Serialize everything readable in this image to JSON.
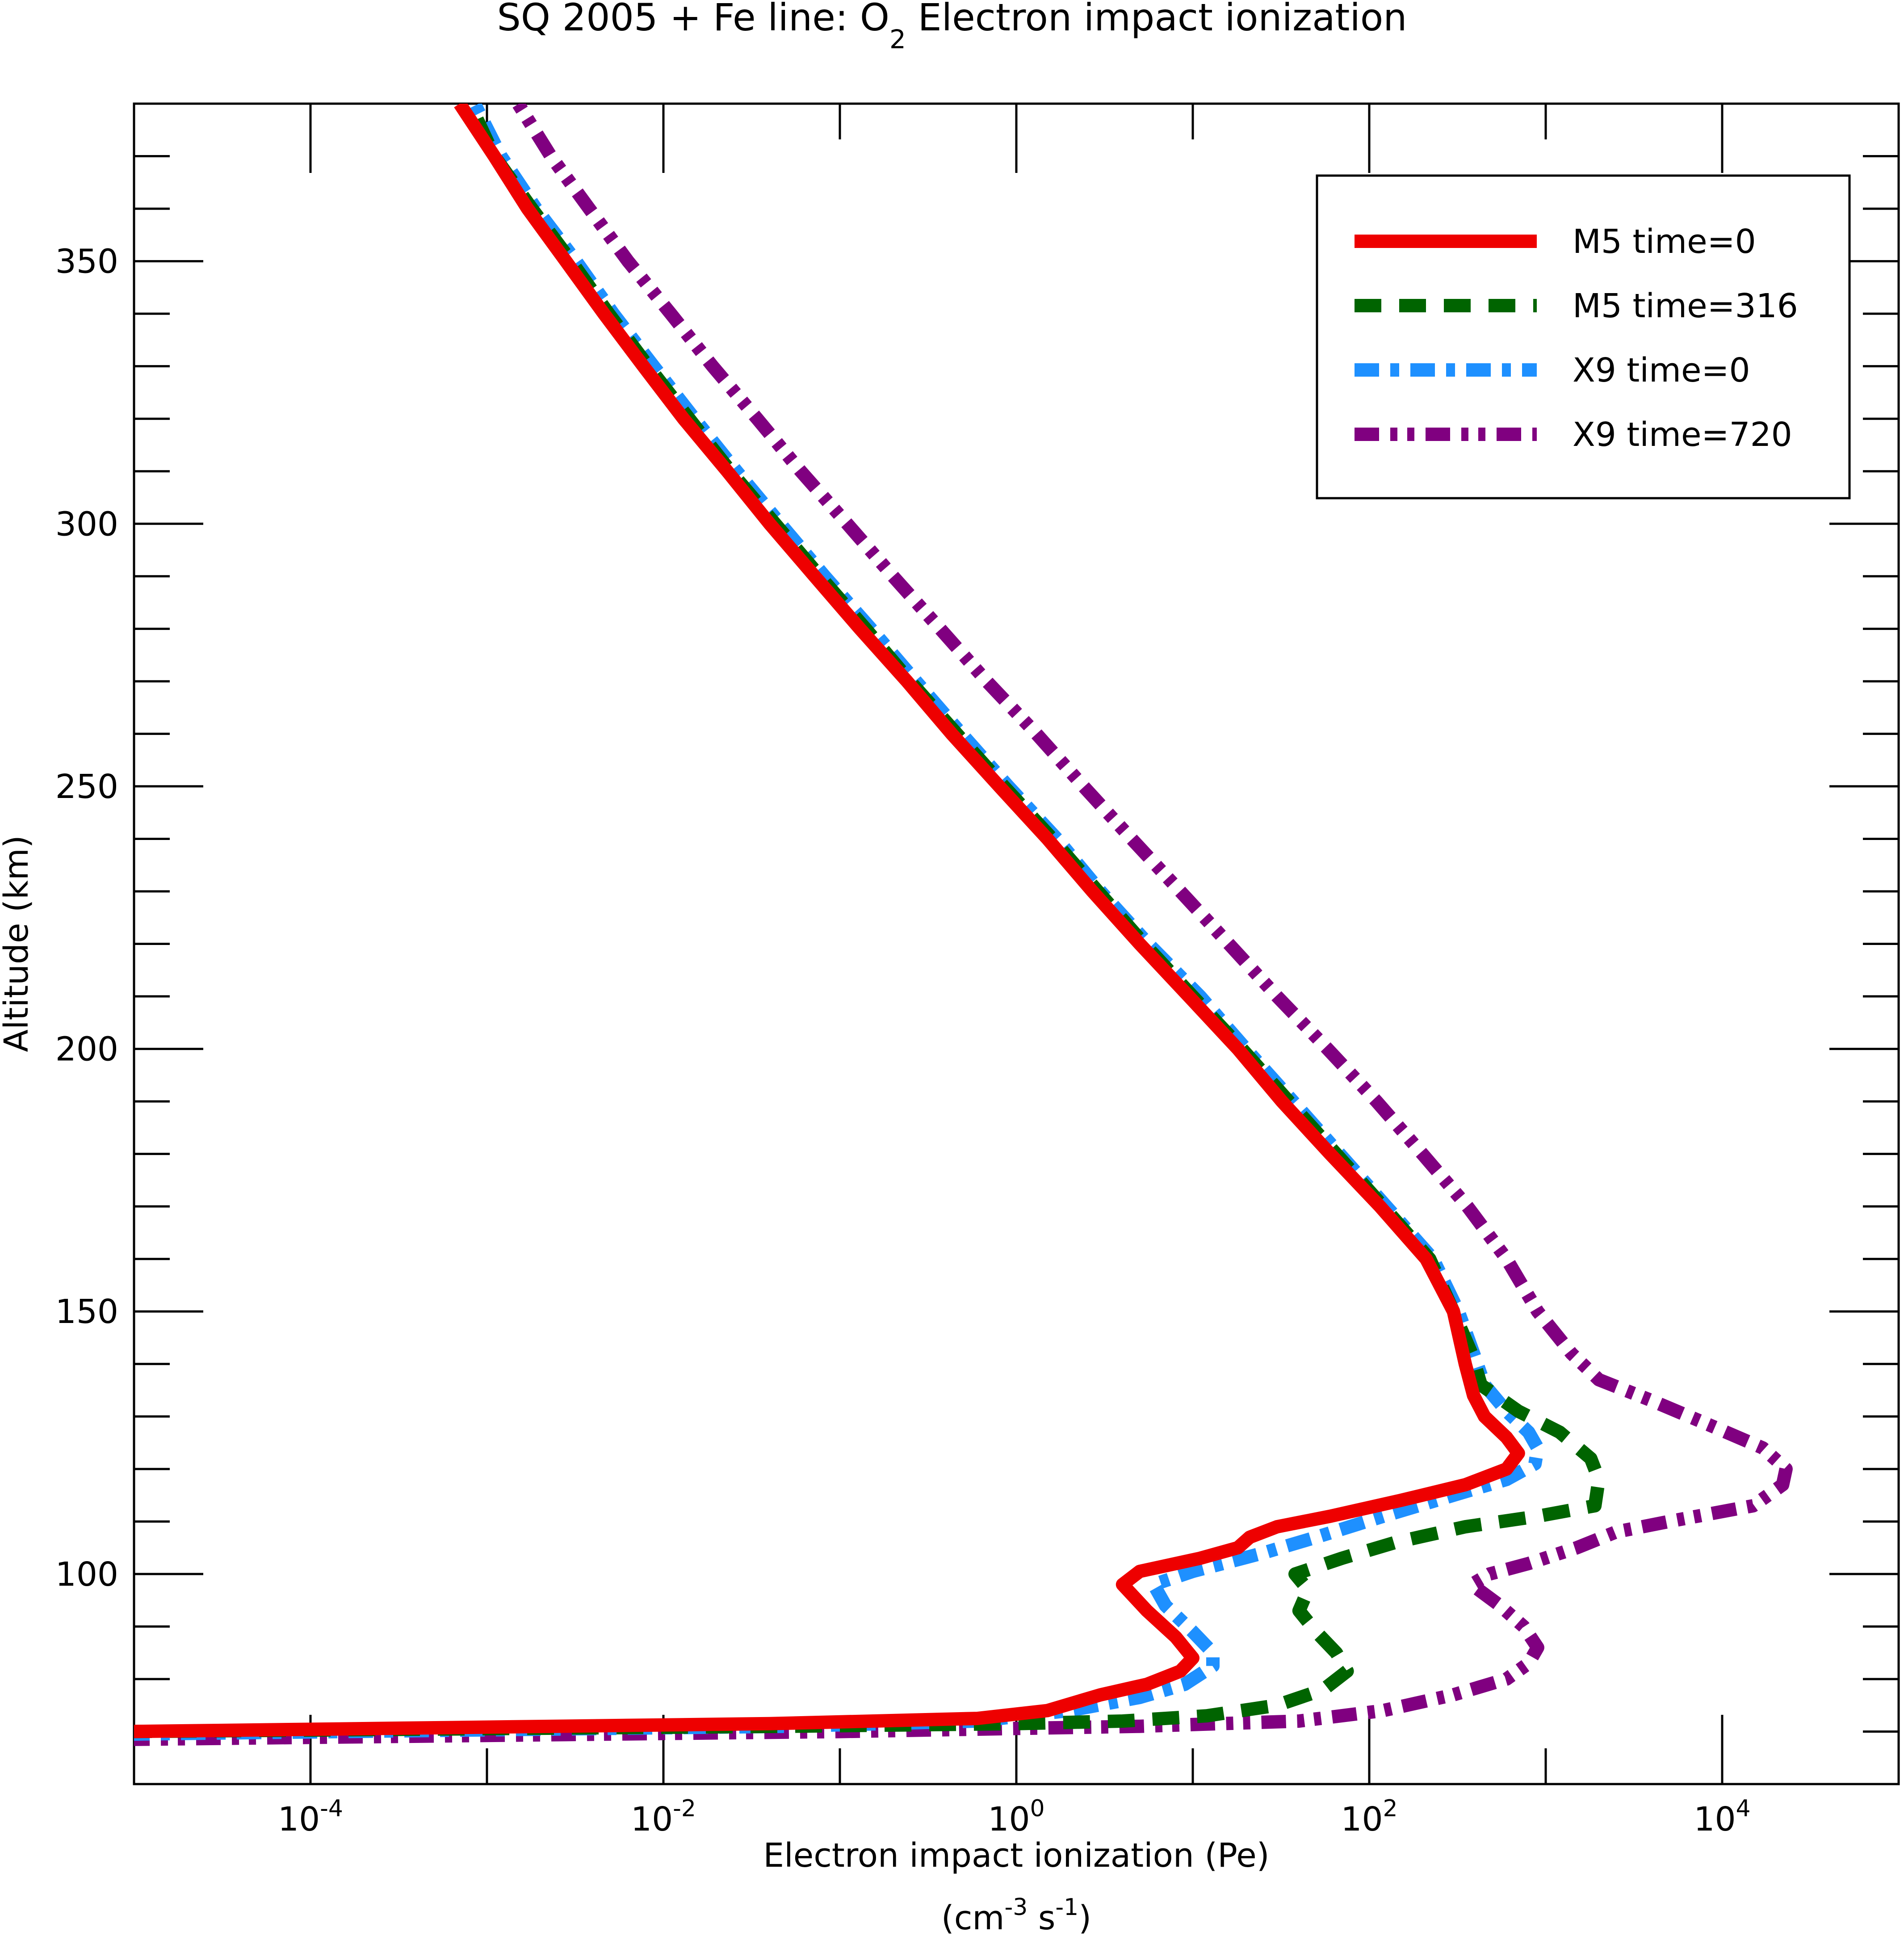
{
  "chart_data": {
    "type": "line",
    "title": {
      "prefix": "SQ 2005 + Fe line: O",
      "subscript": "2",
      "suffix": " Electron impact ionization"
    },
    "xlabel": "Electron impact ionization (Pe)",
    "xunits": {
      "a": "(cm",
      "sup1": "-3",
      "b": " s",
      "sup2": "-1",
      "c": ")"
    },
    "ylabel": "Altitude (km)",
    "xscale": "log",
    "xlim": [
      1e-05,
      100000.0
    ],
    "ylim": [
      60,
      380
    ],
    "x_ticks": [
      {
        "base": "10",
        "exp": "-4",
        "value": 0.0001
      },
      {
        "base": "10",
        "exp": "-2",
        "value": 0.01
      },
      {
        "base": "10",
        "exp": "0",
        "value": 1
      },
      {
        "base": "10",
        "exp": "2",
        "value": 100
      },
      {
        "base": "10",
        "exp": "4",
        "value": 10000
      }
    ],
    "y_ticks": [
      "100",
      "150",
      "200",
      "250",
      "300",
      "350"
    ],
    "grid": false,
    "legend_position": "top-right",
    "series": [
      {
        "name": "M5 time=0",
        "color": "#ee0000",
        "style": "solid",
        "points": [
          [
            8.9e-06,
            70
          ],
          [
            0.04,
            71.5
          ],
          [
            0.6,
            72.5
          ],
          [
            1.5,
            74
          ],
          [
            3,
            77
          ],
          [
            5.5,
            79
          ],
          [
            8.5,
            81.5
          ],
          [
            10,
            84
          ],
          [
            8,
            88
          ],
          [
            5.5,
            93
          ],
          [
            4,
            98
          ],
          [
            5,
            100.5
          ],
          [
            11,
            103
          ],
          [
            18,
            105
          ],
          [
            21,
            107
          ],
          [
            30,
            109
          ],
          [
            60,
            111
          ],
          [
            150,
            114
          ],
          [
            350,
            117
          ],
          [
            600,
            120
          ],
          [
            700,
            123
          ],
          [
            600,
            126
          ],
          [
            450,
            130
          ],
          [
            390,
            134
          ],
          [
            350,
            140
          ],
          [
            300,
            150
          ],
          [
            210,
            160
          ],
          [
            115,
            170
          ],
          [
            60,
            180
          ],
          [
            32,
            190
          ],
          [
            18,
            200
          ],
          [
            9.5,
            210
          ],
          [
            5,
            220
          ],
          [
            2.7,
            230
          ],
          [
            1.5,
            240
          ],
          [
            0.8,
            250
          ],
          [
            0.43,
            260
          ],
          [
            0.24,
            270
          ],
          [
            0.13,
            280
          ],
          [
            0.072,
            290
          ],
          [
            0.04,
            300
          ],
          [
            0.023,
            310
          ],
          [
            0.013,
            320
          ],
          [
            0.0077,
            330
          ],
          [
            0.0046,
            340
          ],
          [
            0.0028,
            350
          ],
          [
            0.0017,
            360
          ],
          [
            0.0011,
            370
          ],
          [
            0.0007,
            380
          ]
        ]
      },
      {
        "name": "M5 time=316",
        "color": "#006400",
        "style": "dashed",
        "points": [
          [
            8.9e-06,
            70
          ],
          [
            0.05,
            71
          ],
          [
            1,
            71.5
          ],
          [
            4,
            72
          ],
          [
            12,
            73
          ],
          [
            30,
            75
          ],
          [
            55,
            78
          ],
          [
            75,
            81.5
          ],
          [
            65,
            85
          ],
          [
            50,
            89
          ],
          [
            40,
            93
          ],
          [
            45,
            97
          ],
          [
            38,
            100
          ],
          [
            70,
            103
          ],
          [
            140,
            106
          ],
          [
            350,
            109
          ],
          [
            900,
            111
          ],
          [
            1900,
            113
          ],
          [
            2000,
            118
          ],
          [
            1800,
            122
          ],
          [
            1200,
            127
          ],
          [
            700,
            131
          ],
          [
            430,
            136
          ],
          [
            380,
            142
          ],
          [
            300,
            150
          ],
          [
            220,
            160
          ],
          [
            120,
            170
          ],
          [
            65,
            180
          ],
          [
            35,
            190
          ],
          [
            19,
            200
          ],
          [
            10,
            210
          ],
          [
            5.3,
            220
          ],
          [
            2.9,
            230
          ],
          [
            1.6,
            240
          ],
          [
            0.85,
            250
          ],
          [
            0.46,
            260
          ],
          [
            0.25,
            270
          ],
          [
            0.14,
            280
          ],
          [
            0.077,
            290
          ],
          [
            0.043,
            300
          ],
          [
            0.024,
            310
          ],
          [
            0.014,
            320
          ],
          [
            0.0082,
            330
          ],
          [
            0.0049,
            340
          ],
          [
            0.003,
            350
          ],
          [
            0.0018,
            360
          ],
          [
            0.0011,
            370
          ],
          [
            0.0008,
            380
          ]
        ]
      },
      {
        "name": "X9 time=0",
        "color": "#1e90ff",
        "style": "dashdot",
        "points": [
          [
            8.9e-06,
            69.5
          ],
          [
            0.05,
            71
          ],
          [
            0.6,
            72
          ],
          [
            2,
            74
          ],
          [
            5,
            76.5
          ],
          [
            9,
            79
          ],
          [
            13,
            82.5
          ],
          [
            13,
            85
          ],
          [
            10,
            89
          ],
          [
            7,
            94
          ],
          [
            6,
            98
          ],
          [
            10,
            100.5
          ],
          [
            25,
            104
          ],
          [
            50,
            107
          ],
          [
            120,
            111
          ],
          [
            300,
            115
          ],
          [
            600,
            118
          ],
          [
            870,
            121
          ],
          [
            900,
            124
          ],
          [
            800,
            127
          ],
          [
            600,
            131
          ],
          [
            450,
            136
          ],
          [
            390,
            142
          ],
          [
            320,
            150
          ],
          [
            230,
            160
          ],
          [
            125,
            170
          ],
          [
            68,
            180
          ],
          [
            37,
            190
          ],
          [
            20,
            200
          ],
          [
            11,
            210
          ],
          [
            5.6,
            220
          ],
          [
            3,
            230
          ],
          [
            1.7,
            240
          ],
          [
            0.9,
            250
          ],
          [
            0.49,
            260
          ],
          [
            0.27,
            270
          ],
          [
            0.15,
            280
          ],
          [
            0.082,
            290
          ],
          [
            0.046,
            300
          ],
          [
            0.026,
            310
          ],
          [
            0.015,
            320
          ],
          [
            0.0088,
            330
          ],
          [
            0.0052,
            340
          ],
          [
            0.0032,
            350
          ],
          [
            0.0019,
            360
          ],
          [
            0.0012,
            370
          ],
          [
            0.00085,
            380
          ]
        ]
      },
      {
        "name": "X9 time=720",
        "color": "#800080",
        "style": "dashdotdot",
        "points": [
          [
            8.9e-06,
            68.5
          ],
          [
            0.1,
            70
          ],
          [
            5,
            71
          ],
          [
            40,
            72
          ],
          [
            120,
            74
          ],
          [
            300,
            77
          ],
          [
            600,
            80
          ],
          [
            800,
            83
          ],
          [
            900,
            86
          ],
          [
            750,
            90
          ],
          [
            550,
            94
          ],
          [
            380,
            98
          ],
          [
            480,
            100
          ],
          [
            800,
            102
          ],
          [
            1500,
            105
          ],
          [
            2500,
            108
          ],
          [
            5000,
            110
          ],
          [
            15000,
            113
          ],
          [
            22000,
            117
          ],
          [
            23000,
            120
          ],
          [
            17000,
            124
          ],
          [
            9000,
            128
          ],
          [
            4000,
            133
          ],
          [
            2000,
            137
          ],
          [
            1400,
            142
          ],
          [
            900,
            150
          ],
          [
            600,
            160
          ],
          [
            360,
            170
          ],
          [
            200,
            180
          ],
          [
            110,
            190
          ],
          [
            58,
            200
          ],
          [
            30,
            210
          ],
          [
            16,
            220
          ],
          [
            8.5,
            230
          ],
          [
            4.5,
            240
          ],
          [
            2.4,
            250
          ],
          [
            1.3,
            260
          ],
          [
            0.68,
            270
          ],
          [
            0.37,
            280
          ],
          [
            0.2,
            290
          ],
          [
            0.11,
            300
          ],
          [
            0.06,
            310
          ],
          [
            0.034,
            320
          ],
          [
            0.019,
            330
          ],
          [
            0.011,
            340
          ],
          [
            0.0063,
            350
          ],
          [
            0.0038,
            360
          ],
          [
            0.0023,
            370
          ],
          [
            0.0015,
            380
          ]
        ]
      }
    ]
  }
}
